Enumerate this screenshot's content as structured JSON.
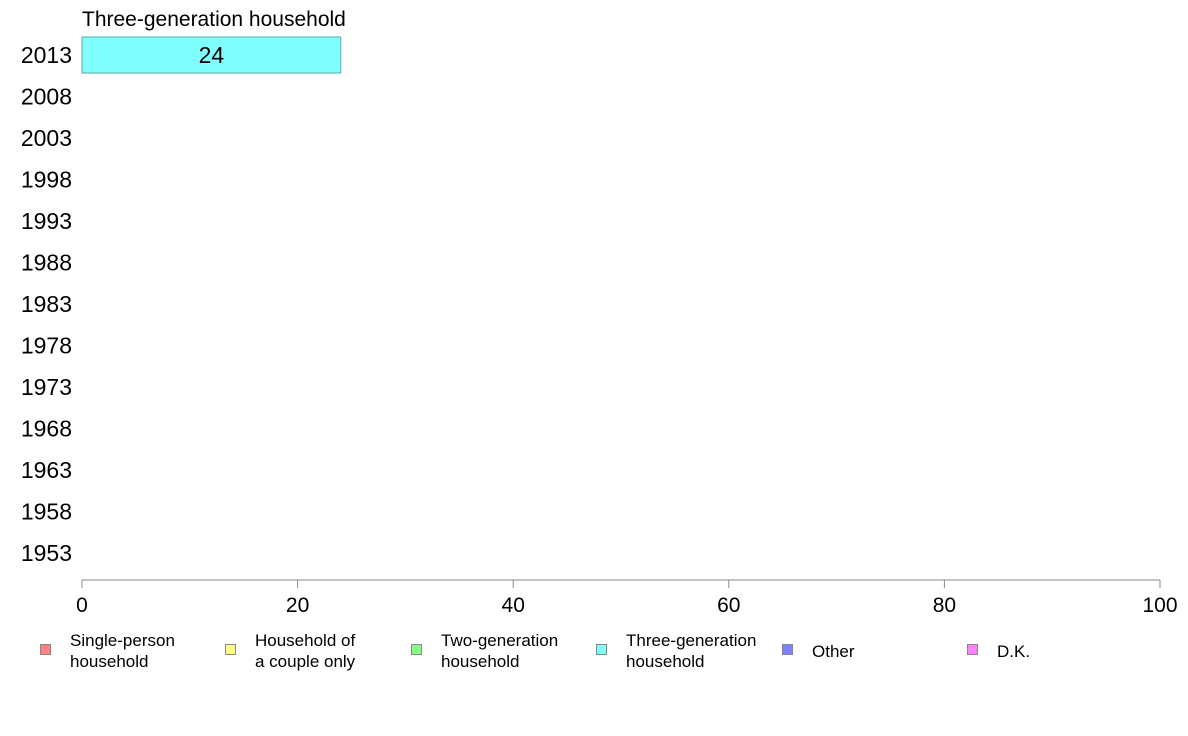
{
  "chart_data": {
    "type": "bar",
    "orientation": "horizontal",
    "stacked": true,
    "title": "Three-generation household",
    "categories": [
      "2013",
      "2008",
      "2003",
      "1998",
      "1993",
      "1988",
      "1983",
      "1978",
      "1973",
      "1968",
      "1963",
      "1958",
      "1953"
    ],
    "series": [
      {
        "name": "Single-person\nhousehold",
        "color": "#ff8080",
        "values": [
          null,
          null,
          null,
          null,
          null,
          null,
          null,
          null,
          null,
          null,
          null,
          null,
          null
        ]
      },
      {
        "name": "Household of\na couple only",
        "color": "#ffff80",
        "values": [
          null,
          null,
          null,
          null,
          null,
          null,
          null,
          null,
          null,
          null,
          null,
          null,
          null
        ]
      },
      {
        "name": "Two-generation\nhousehold",
        "color": "#80ff80",
        "values": [
          null,
          null,
          null,
          null,
          null,
          null,
          null,
          null,
          null,
          null,
          null,
          null,
          null
        ]
      },
      {
        "name": "Three-generation\nhousehold",
        "color": "#80ffff",
        "values": [
          24,
          null,
          null,
          null,
          null,
          null,
          null,
          null,
          null,
          null,
          null,
          null,
          null
        ]
      },
      {
        "name": "Other",
        "color": "#8080ff",
        "values": [
          null,
          null,
          null,
          null,
          null,
          null,
          null,
          null,
          null,
          null,
          null,
          null,
          null
        ]
      },
      {
        "name": "D.K.",
        "color": "#ff80ff",
        "values": [
          null,
          null,
          null,
          null,
          null,
          null,
          null,
          null,
          null,
          null,
          null,
          null,
          null
        ]
      }
    ],
    "xlim": [
      0,
      100
    ],
    "xticks": [
      "0",
      "20",
      "40",
      "60",
      "80",
      "100"
    ],
    "grid": false,
    "legend_position": "bottom"
  }
}
